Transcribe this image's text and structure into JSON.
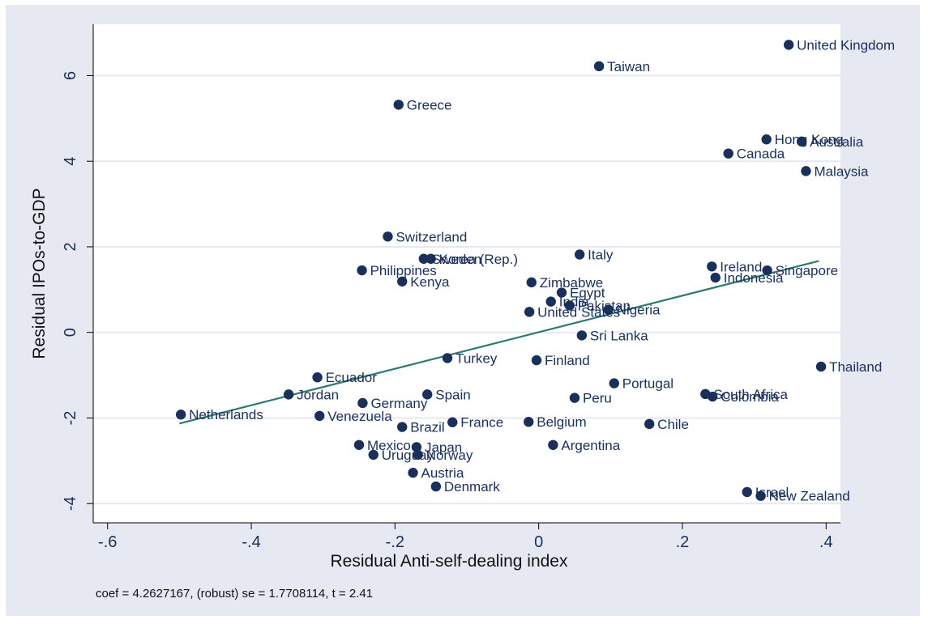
{
  "chart_data": {
    "type": "scatter",
    "title": "",
    "xlabel": "Residual Anti-self-dealing index",
    "ylabel": "Residual IPOs-to-GDP",
    "xlim": [
      -0.62,
      0.42
    ],
    "ylim": [
      -4.45,
      7.2
    ],
    "x_ticks": [
      -0.6,
      -0.4,
      -0.2,
      0,
      0.2,
      0.4
    ],
    "x_tick_labels": [
      "-.6",
      "-.4",
      "-.2",
      "0",
      ".2",
      ".4"
    ],
    "y_ticks": [
      -4,
      -2,
      0,
      2,
      4,
      6
    ],
    "y_tick_labels": [
      "-4",
      "-2",
      "0",
      "2",
      "4",
      "6"
    ],
    "grid": "horizontal",
    "legend": "none",
    "note": "coef = 4.2627167, (robust) se = 1.7708114, t = 2.41",
    "fit_line": {
      "x": [
        -0.5,
        0.39
      ],
      "y": [
        -2.13,
        1.67
      ]
    },
    "points": [
      {
        "label": "United Kingdom",
        "x": 0.348,
        "y": 6.72
      },
      {
        "label": "Taiwan",
        "x": 0.084,
        "y": 6.22
      },
      {
        "label": "Greece",
        "x": -0.195,
        "y": 5.32
      },
      {
        "label": "Hong Kong",
        "x": 0.317,
        "y": 4.51
      },
      {
        "label": "Australia",
        "x": 0.366,
        "y": 4.46
      },
      {
        "label": "Canada",
        "x": 0.264,
        "y": 4.18
      },
      {
        "label": "Malaysia",
        "x": 0.372,
        "y": 3.77
      },
      {
        "label": "Switzerland",
        "x": -0.21,
        "y": 2.24
      },
      {
        "label": "Italy",
        "x": 0.057,
        "y": 1.82
      },
      {
        "label": "Sweden",
        "x": -0.16,
        "y": 1.72
      },
      {
        "label": "Korea (Rep.)",
        "x": -0.15,
        "y": 1.72
      },
      {
        "label": "Ireland",
        "x": 0.241,
        "y": 1.54
      },
      {
        "label": "Singapore",
        "x": 0.318,
        "y": 1.45
      },
      {
        "label": "Philippines",
        "x": -0.246,
        "y": 1.45
      },
      {
        "label": "Indonesia",
        "x": 0.246,
        "y": 1.28
      },
      {
        "label": "Kenya",
        "x": -0.19,
        "y": 1.19
      },
      {
        "label": "Zimbabwe",
        "x": -0.01,
        "y": 1.17
      },
      {
        "label": "Egypt",
        "x": 0.032,
        "y": 0.93
      },
      {
        "label": "India",
        "x": 0.017,
        "y": 0.72
      },
      {
        "label": "Pakistan",
        "x": 0.043,
        "y": 0.63
      },
      {
        "label": "Nigeria",
        "x": 0.097,
        "y": 0.53
      },
      {
        "label": "United States",
        "x": -0.013,
        "y": 0.48
      },
      {
        "label": "Sri Lanka",
        "x": 0.06,
        "y": -0.07
      },
      {
        "label": "Turkey",
        "x": -0.127,
        "y": -0.6
      },
      {
        "label": "Finland",
        "x": -0.003,
        "y": -0.65
      },
      {
        "label": "Thailand",
        "x": 0.393,
        "y": -0.8
      },
      {
        "label": "Ecuador",
        "x": -0.308,
        "y": -1.05
      },
      {
        "label": "Portugal",
        "x": 0.105,
        "y": -1.19
      },
      {
        "label": "Jordan",
        "x": -0.348,
        "y": -1.45
      },
      {
        "label": "Spain",
        "x": -0.155,
        "y": -1.45
      },
      {
        "label": "South Africa",
        "x": 0.232,
        "y": -1.44
      },
      {
        "label": "Colombia",
        "x": 0.242,
        "y": -1.5
      },
      {
        "label": "Peru",
        "x": 0.05,
        "y": -1.53
      },
      {
        "label": "Germany",
        "x": -0.245,
        "y": -1.65
      },
      {
        "label": "Netherlands",
        "x": -0.498,
        "y": -1.92
      },
      {
        "label": "Venezuela",
        "x": -0.305,
        "y": -1.95
      },
      {
        "label": "France",
        "x": -0.12,
        "y": -2.1
      },
      {
        "label": "Belgium",
        "x": -0.014,
        "y": -2.09
      },
      {
        "label": "Chile",
        "x": 0.154,
        "y": -2.14
      },
      {
        "label": "Brazil",
        "x": -0.19,
        "y": -2.21
      },
      {
        "label": "Mexico",
        "x": -0.25,
        "y": -2.63
      },
      {
        "label": "Argentina",
        "x": 0.02,
        "y": -2.63
      },
      {
        "label": "Japan",
        "x": -0.17,
        "y": -2.68
      },
      {
        "label": "Uruguay",
        "x": -0.23,
        "y": -2.86
      },
      {
        "label": "Norway",
        "x": -0.168,
        "y": -2.86
      },
      {
        "label": "Austria",
        "x": -0.175,
        "y": -3.28
      },
      {
        "label": "Denmark",
        "x": -0.143,
        "y": -3.6
      },
      {
        "label": "Israel",
        "x": 0.29,
        "y": -3.73
      },
      {
        "label": "New Zealand",
        "x": 0.309,
        "y": -3.82
      }
    ],
    "colors": {
      "outer_background": "#e6e9f2",
      "plot_background": "#ffffff",
      "marker": "#1a2f5a",
      "fit_line": "#2e7a6e",
      "grid": "#e6e9f2"
    }
  }
}
